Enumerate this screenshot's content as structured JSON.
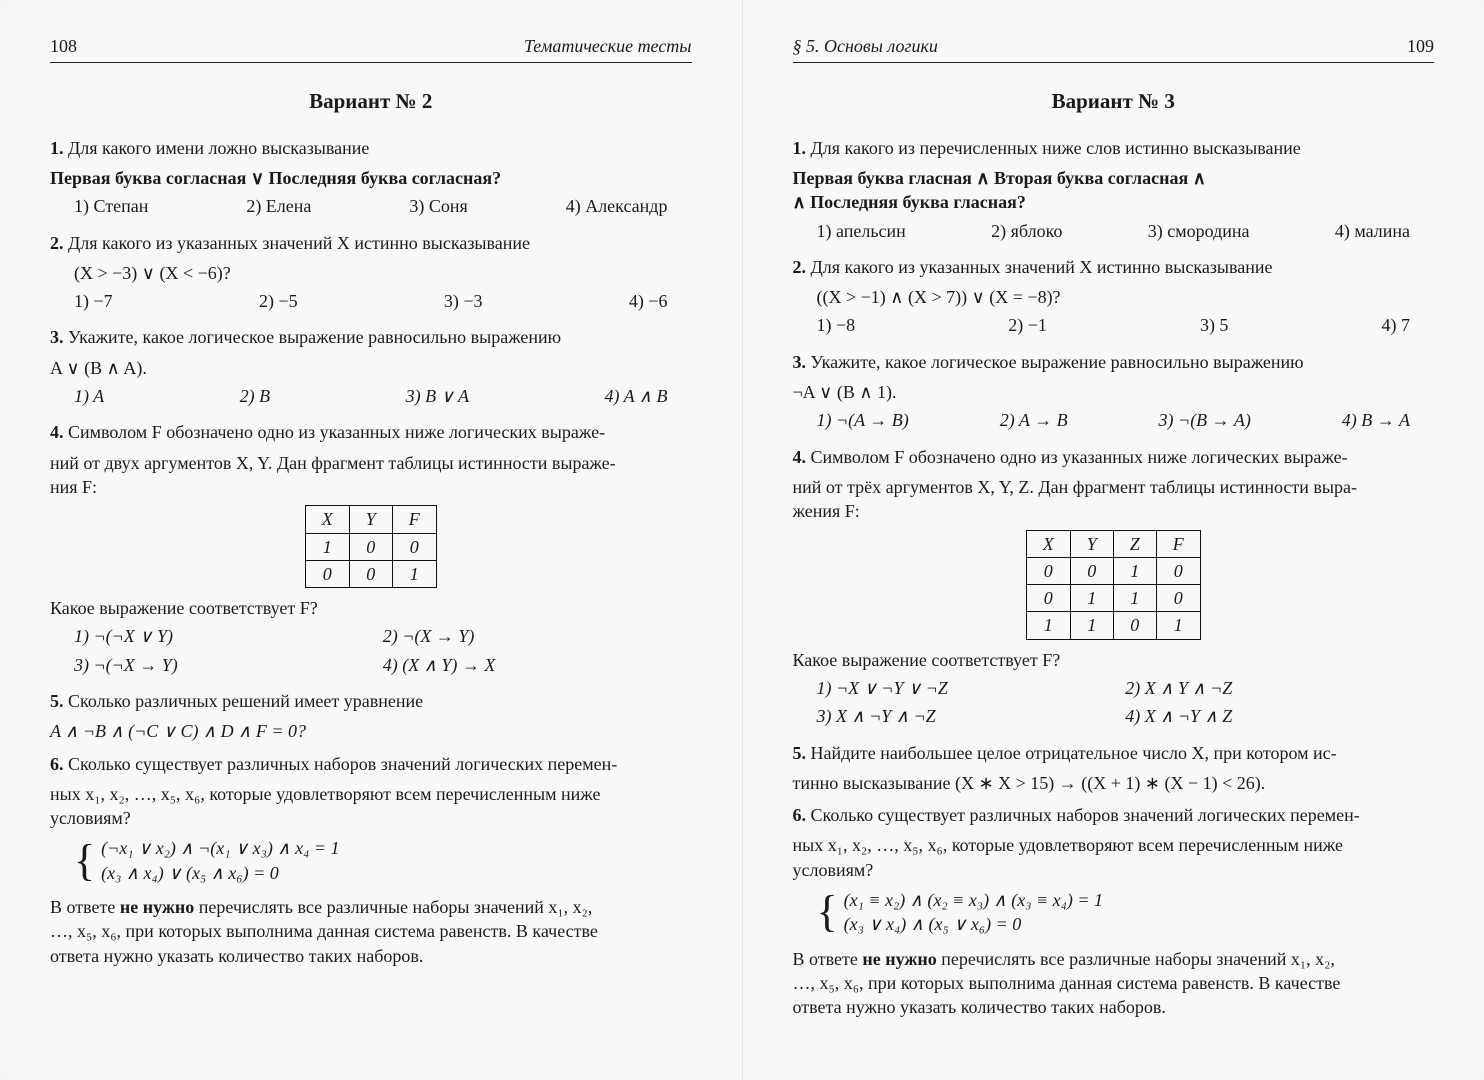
{
  "left": {
    "pagenum": "108",
    "running": "Тематические тесты",
    "variant": "Вариант № 2",
    "q1": {
      "lead": "Для какого имени ложно высказывание",
      "stmt": "Первая буква согласная  ∨  Последняя буква согласная?",
      "opts": [
        "1) Степан",
        "2) Елена",
        "3) Соня",
        "4) Александр"
      ]
    },
    "q2": {
      "lead": "Для какого из указанных значений X истинно высказывание",
      "expr": "(X > −3) ∨ (X < −6)?",
      "opts": [
        "1) −7",
        "2) −5",
        "3) −3",
        "4) −6"
      ]
    },
    "q3": {
      "lead": "Укажите, какое логическое выражение равносильно выражению",
      "expr": "A ∨ (B ∧ A).",
      "opts": [
        "1)  A",
        "2)  B",
        "3)  B ∨ A",
        "4)  A ∧ B"
      ]
    },
    "q4": {
      "lead1": "Символом F обозначено одно из указанных ниже логических выраже-",
      "lead2": "ний от двух аргументов X, Y. Дан фрагмент таблицы истинности выраже-",
      "lead3": "ния F:",
      "table": {
        "head": [
          "X",
          "Y",
          "F"
        ],
        "rows": [
          [
            "1",
            "0",
            "0"
          ],
          [
            "0",
            "0",
            "1"
          ]
        ]
      },
      "ask": "Какое выражение соответствует F?",
      "opts": [
        "1) ¬(¬X ∨ Y)",
        "2) ¬(X → Y)",
        "3) ¬(¬X → Y)",
        "4) (X ∧ Y) → X"
      ]
    },
    "q5": {
      "lead": "Сколько различных решений имеет уравнение",
      "expr": "A ∧ ¬B ∧ (¬C ∨ C) ∧ D ∧ F = 0?"
    },
    "q6": {
      "lead1": "Сколько существует различных наборов значений логических перемен-",
      "lead2": "ных x₁, x₂, …, x₅, x₆, которые удовлетворяют всем перечисленным ниже",
      "lead3": "условиям?",
      "sys1": "(¬x₁ ∨ x₂) ∧ ¬(x₁ ∨ x₃) ∧ x₄ = 1",
      "sys2": "(x₃ ∧ x₄) ∨ (x₅ ∧ x₆) = 0",
      "ans1": "В ответе ",
      "ansB": "не нужно",
      "ans2": " перечислять все различные наборы значений x₁, x₂,",
      "ans3": "…, x₅, x₆, при которых выполнима данная система равенств. В качестве",
      "ans4": "ответа нужно указать количество таких наборов."
    }
  },
  "right": {
    "pagenum": "109",
    "running": "§ 5.   Основы логики",
    "variant": "Вариант № 3",
    "q1": {
      "lead": "Для какого из перечисленных ниже слов истинно высказывание",
      "stmt1": "Первая буква гласная  ∧  Вторая буква согласная  ∧",
      "stmt2": "∧  Последняя буква гласная?",
      "opts": [
        "1) апельсин",
        "2) яблоко",
        "3) смородина",
        "4) малина"
      ]
    },
    "q2": {
      "lead": "Для какого из указанных значений X истинно высказывание",
      "expr": "((X > −1) ∧ (X > 7)) ∨ (X = −8)?",
      "opts": [
        "1) −8",
        "2) −1",
        "3) 5",
        "4) 7"
      ]
    },
    "q3": {
      "lead": "Укажите, какое логическое выражение равносильно выражению",
      "expr": "¬A ∨ (B ∧ 1).",
      "opts": [
        "1)  ¬(A → B)",
        "2)  A → B",
        "3)  ¬(B → A)",
        "4)  B → A"
      ]
    },
    "q4": {
      "lead1": "Символом F обозначено одно из указанных ниже логических выраже-",
      "lead2": "ний от трёх аргументов X, Y, Z. Дан фрагмент таблицы истинности выра-",
      "lead3": "жения F:",
      "table": {
        "head": [
          "X",
          "Y",
          "Z",
          "F"
        ],
        "rows": [
          [
            "0",
            "0",
            "1",
            "0"
          ],
          [
            "0",
            "1",
            "1",
            "0"
          ],
          [
            "1",
            "1",
            "0",
            "1"
          ]
        ]
      },
      "ask": "Какое выражение соответствует F?",
      "opts": [
        "1) ¬X ∨ ¬Y ∨ ¬Z",
        "2) X ∧ Y ∧ ¬Z",
        "3) X ∧ ¬Y ∧ ¬Z",
        "4) X ∧ ¬Y ∧ Z"
      ]
    },
    "q5": {
      "lead": "Найдите наибольшее целое отрицательное число X, при котором ис-",
      "expr": "тинно высказывание  (X ∗ X > 15) → ((X + 1) ∗ (X − 1) < 26)."
    },
    "q6": {
      "lead1": "Сколько существует различных наборов значений логических перемен-",
      "lead2": "ных x₁, x₂, …, x₅, x₆, которые удовлетворяют всем перечисленным ниже",
      "lead3": "условиям?",
      "sys1": "(x₁ ≡ x₂) ∧ (x₂ ≡ x₃) ∧ (x₃ ≡ x₄) = 1",
      "sys2": "(x₃ ∨ x₄) ∧ (x₅ ∨ x₆) = 0",
      "ans1": "В ответе ",
      "ansB": "не нужно",
      "ans2": " перечислять все различные наборы значений x₁, x₂,",
      "ans3": "…, x₅, x₆, при которых выполнима данная система равенств. В качестве",
      "ans4": "ответа нужно указать количество таких наборов."
    }
  }
}
